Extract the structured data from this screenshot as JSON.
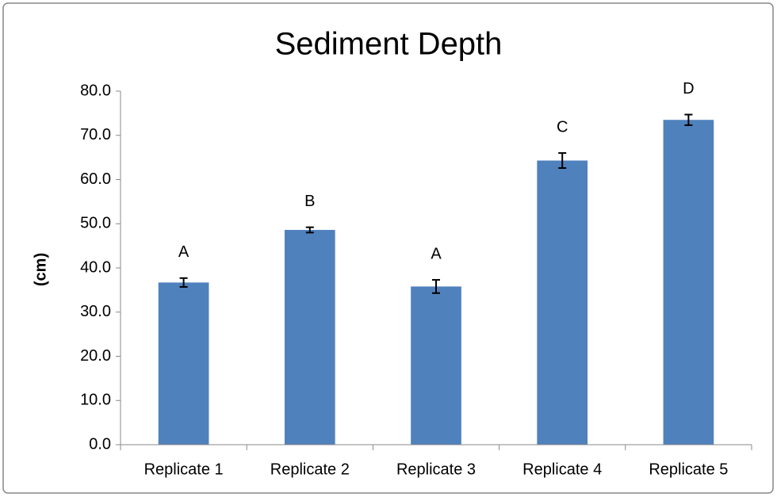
{
  "chart_data": {
    "type": "bar",
    "title": "Sediment Depth",
    "y_label": "(cm)",
    "categories": [
      "Replicate 1",
      "Replicate 2",
      "Replicate 3",
      "Replicate 4",
      "Replicate 5"
    ],
    "values": [
      36.7,
      48.6,
      35.8,
      64.3,
      73.5
    ],
    "errors": [
      1.0,
      0.6,
      1.5,
      1.7,
      1.2
    ],
    "annotations": [
      "A",
      "B",
      "A",
      "C",
      "D"
    ],
    "color": "#4f81bd",
    "ylim": [
      0,
      80
    ],
    "yticks": [
      {
        "value": 0,
        "label": "0.0"
      },
      {
        "value": 10,
        "label": "10.0"
      },
      {
        "value": 20,
        "label": "20.0"
      },
      {
        "value": 30,
        "label": "30.0"
      },
      {
        "value": 40,
        "label": "40.0"
      },
      {
        "value": 50,
        "label": "50.0"
      },
      {
        "value": 60,
        "label": "60.0"
      },
      {
        "value": 70,
        "label": "70.0"
      },
      {
        "value": 80,
        "label": "80.0"
      }
    ],
    "grid": false
  }
}
